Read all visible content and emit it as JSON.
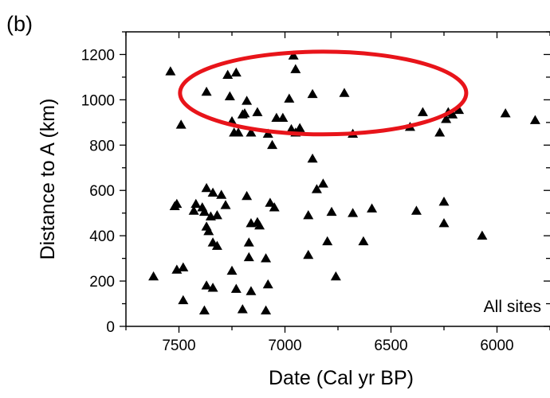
{
  "panel_label": "(b)",
  "chart_data": {
    "type": "scatter",
    "xlabel": "Date (Cal yr BP)",
    "ylabel": "Distance to A (km)",
    "xlim": [
      7750,
      5750
    ],
    "ylim": [
      0,
      1300
    ],
    "x_reversed": true,
    "x_ticks": [
      7500,
      7000,
      6500,
      6000
    ],
    "y_ticks": [
      0,
      200,
      400,
      600,
      800,
      1000,
      1200
    ],
    "grid": false,
    "marker": "triangle",
    "marker_color": "#000000",
    "annotation": "All sites",
    "highlight": {
      "shape": "ellipse",
      "color": "#e8141a",
      "center": [
        6820,
        1030
      ],
      "radii": [
        1350,
        365
      ]
    },
    "points": [
      {
        "x": 7540,
        "y": 1125
      },
      {
        "x": 7270,
        "y": 1110
      },
      {
        "x": 7230,
        "y": 1120
      },
      {
        "x": 7370,
        "y": 1035
      },
      {
        "x": 7260,
        "y": 1015
      },
      {
        "x": 7180,
        "y": 995
      },
      {
        "x": 7490,
        "y": 890
      },
      {
        "x": 7250,
        "y": 905
      },
      {
        "x": 7190,
        "y": 940
      },
      {
        "x": 7240,
        "y": 855
      },
      {
        "x": 7220,
        "y": 855
      },
      {
        "x": 7200,
        "y": 935
      },
      {
        "x": 7160,
        "y": 855
      },
      {
        "x": 7130,
        "y": 945
      },
      {
        "x": 7080,
        "y": 850
      },
      {
        "x": 7060,
        "y": 800
      },
      {
        "x": 7040,
        "y": 920
      },
      {
        "x": 7010,
        "y": 920
      },
      {
        "x": 6980,
        "y": 1005
      },
      {
        "x": 6960,
        "y": 1195
      },
      {
        "x": 6950,
        "y": 1135
      },
      {
        "x": 6970,
        "y": 870
      },
      {
        "x": 6950,
        "y": 855
      },
      {
        "x": 6930,
        "y": 875
      },
      {
        "x": 6870,
        "y": 1025
      },
      {
        "x": 6720,
        "y": 1030
      },
      {
        "x": 6680,
        "y": 850
      },
      {
        "x": 6870,
        "y": 740
      },
      {
        "x": 6410,
        "y": 880
      },
      {
        "x": 6350,
        "y": 945
      },
      {
        "x": 6270,
        "y": 855
      },
      {
        "x": 6240,
        "y": 915
      },
      {
        "x": 6230,
        "y": 945
      },
      {
        "x": 6210,
        "y": 935
      },
      {
        "x": 6180,
        "y": 955
      },
      {
        "x": 5960,
        "y": 940
      },
      {
        "x": 5820,
        "y": 910
      },
      {
        "x": 6820,
        "y": 630
      },
      {
        "x": 6850,
        "y": 605
      },
      {
        "x": 7370,
        "y": 610
      },
      {
        "x": 7340,
        "y": 590
      },
      {
        "x": 7300,
        "y": 580
      },
      {
        "x": 7180,
        "y": 575
      },
      {
        "x": 7280,
        "y": 535
      },
      {
        "x": 7420,
        "y": 540
      },
      {
        "x": 7390,
        "y": 525
      },
      {
        "x": 7510,
        "y": 540
      },
      {
        "x": 7520,
        "y": 530
      },
      {
        "x": 7070,
        "y": 545
      },
      {
        "x": 7050,
        "y": 525
      },
      {
        "x": 7380,
        "y": 505
      },
      {
        "x": 7430,
        "y": 510
      },
      {
        "x": 7350,
        "y": 485
      },
      {
        "x": 7320,
        "y": 490
      },
      {
        "x": 7160,
        "y": 455
      },
      {
        "x": 7130,
        "y": 460
      },
      {
        "x": 7120,
        "y": 445
      },
      {
        "x": 7370,
        "y": 440
      },
      {
        "x": 7360,
        "y": 420
      },
      {
        "x": 7340,
        "y": 370
      },
      {
        "x": 7320,
        "y": 355
      },
      {
        "x": 7170,
        "y": 370
      },
      {
        "x": 7170,
        "y": 305
      },
      {
        "x": 7090,
        "y": 300
      },
      {
        "x": 7250,
        "y": 245
      },
      {
        "x": 7480,
        "y": 260
      },
      {
        "x": 7510,
        "y": 250
      },
      {
        "x": 7620,
        "y": 220
      },
      {
        "x": 7370,
        "y": 180
      },
      {
        "x": 7340,
        "y": 170
      },
      {
        "x": 7230,
        "y": 165
      },
      {
        "x": 7160,
        "y": 155
      },
      {
        "x": 7080,
        "y": 185
      },
      {
        "x": 7480,
        "y": 115
      },
      {
        "x": 7200,
        "y": 75
      },
      {
        "x": 7380,
        "y": 70
      },
      {
        "x": 7090,
        "y": 70
      },
      {
        "x": 6890,
        "y": 490
      },
      {
        "x": 6780,
        "y": 505
      },
      {
        "x": 6680,
        "y": 500
      },
      {
        "x": 6590,
        "y": 520
      },
      {
        "x": 6380,
        "y": 510
      },
      {
        "x": 6250,
        "y": 550
      },
      {
        "x": 6250,
        "y": 455
      },
      {
        "x": 6070,
        "y": 400
      },
      {
        "x": 6630,
        "y": 375
      },
      {
        "x": 6800,
        "y": 375
      },
      {
        "x": 6890,
        "y": 315
      },
      {
        "x": 6760,
        "y": 220
      }
    ]
  }
}
